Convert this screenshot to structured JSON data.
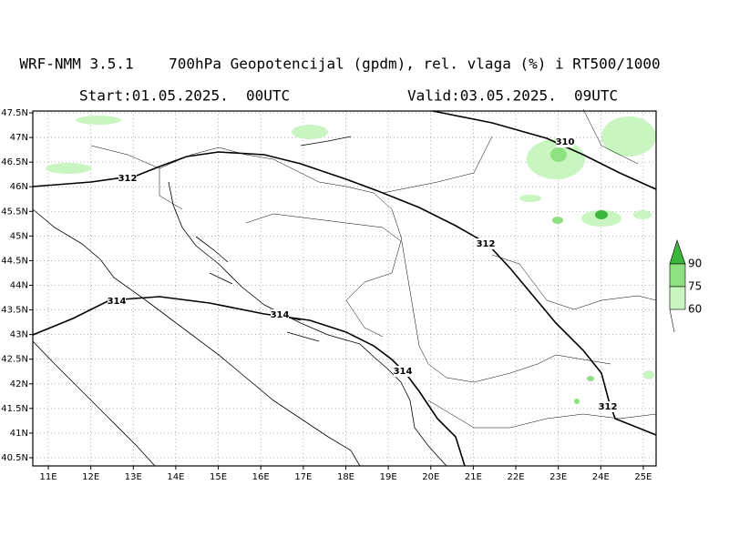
{
  "header": {
    "title": "WRF-NMM 3.5.1    700hPa Geopotencijal (gpdm), rel. vlaga (%) i RT500/1000",
    "start": "Start:01.05.2025.  00UTC",
    "valid": "Valid:03.05.2025.  09UTC"
  },
  "map": {
    "lat_labels": [
      "47.5N",
      "47N",
      "46.5N",
      "46N",
      "45.5N",
      "45N",
      "44.5N",
      "44N",
      "43.5N",
      "43N",
      "42.5N",
      "42N",
      "41.5N",
      "41N",
      "40.5N"
    ],
    "lon_labels": [
      "11E",
      "12E",
      "13E",
      "14E",
      "15E",
      "16E",
      "17E",
      "18E",
      "19E",
      "20E",
      "21E",
      "22E",
      "23E",
      "24E",
      "25E"
    ],
    "contour_labels": [
      "312",
      "312",
      "312",
      "314",
      "314",
      "314",
      "310"
    ]
  },
  "legend": {
    "labels": [
      "90",
      "75",
      "60"
    ]
  }
}
